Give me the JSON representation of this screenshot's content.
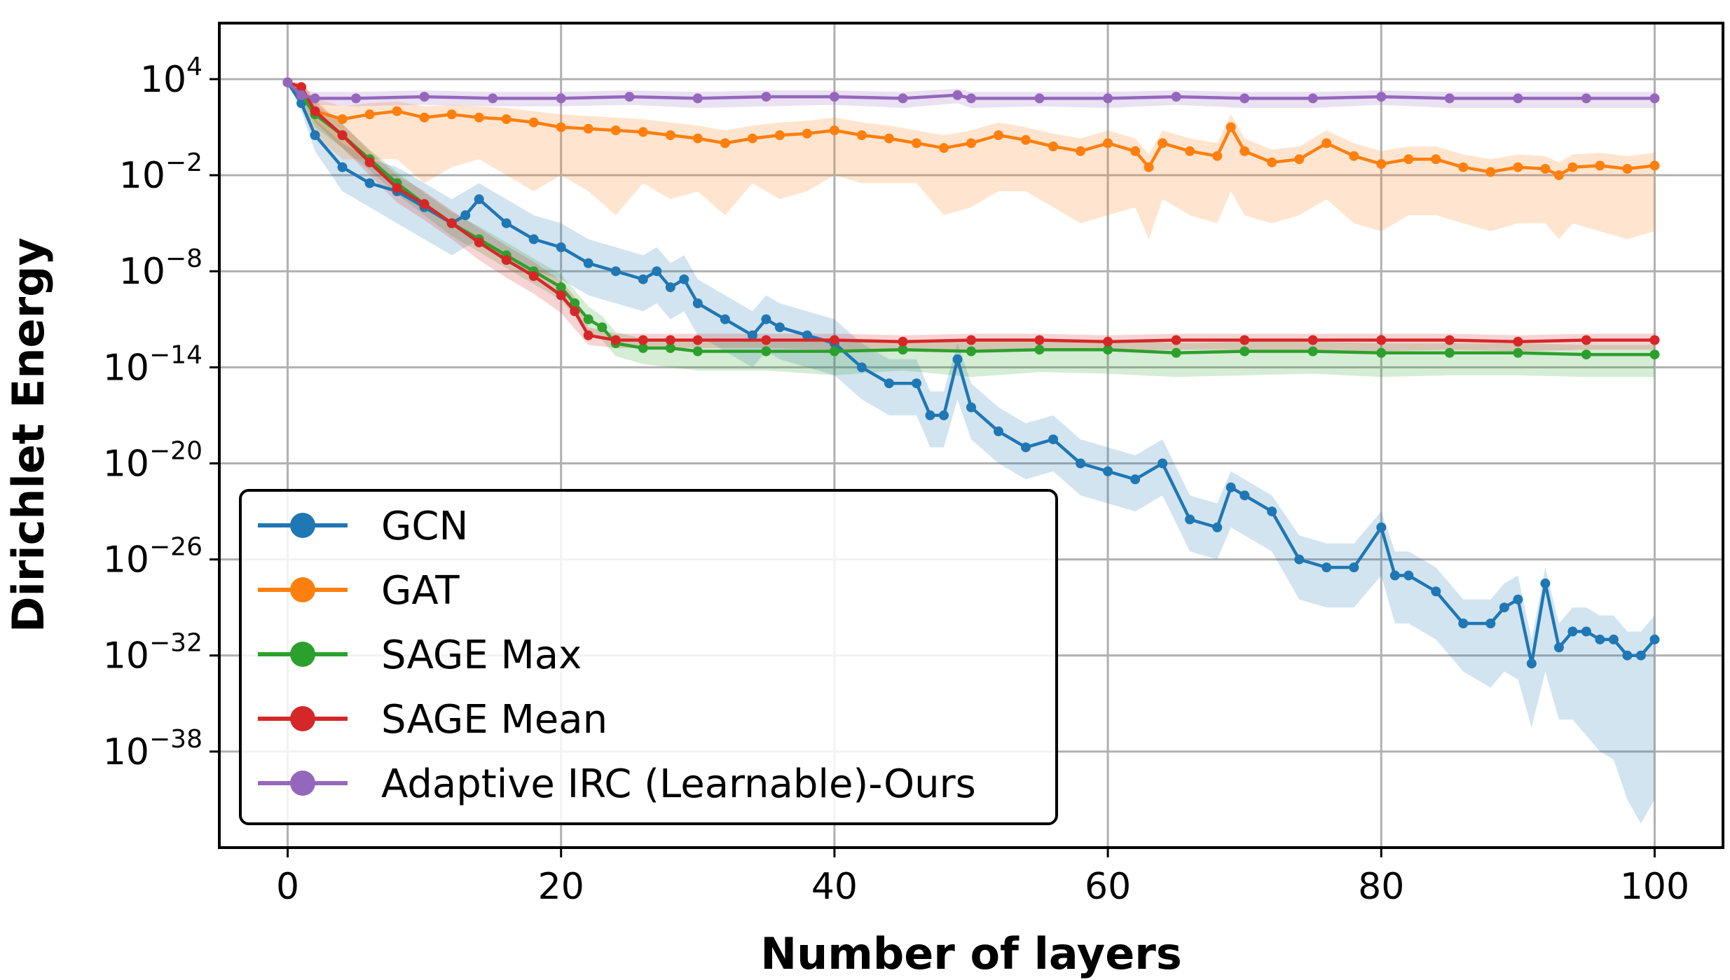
{
  "chart_data": {
    "type": "line",
    "title": "",
    "xlabel": "Number of layers",
    "ylabel": "Dirichlet Energy",
    "x_ticks": [
      "0",
      "20",
      "40",
      "60",
      "80",
      "100"
    ],
    "y_ticks": [
      {
        "base": "10",
        "exp": "4",
        "value": 4
      },
      {
        "base": "10",
        "exp": "−2",
        "value": -2
      },
      {
        "base": "10",
        "exp": "−8",
        "value": -8
      },
      {
        "base": "10",
        "exp": "−14",
        "value": -14
      },
      {
        "base": "10",
        "exp": "−20",
        "value": -20
      },
      {
        "base": "10",
        "exp": "−26",
        "value": -26
      },
      {
        "base": "10",
        "exp": "−32",
        "value": -32
      },
      {
        "base": "10",
        "exp": "−38",
        "value": -38
      }
    ],
    "xlim": [
      -5,
      105
    ],
    "ylim_log10": [
      -44,
      7.5
    ],
    "y_scale": "log",
    "grid": true,
    "legend_position": "lower-left",
    "series": [
      {
        "name": "GCN",
        "color": "#1f77b4",
        "x": [
          0,
          1,
          2,
          4,
          6,
          8,
          10,
          12,
          13,
          14,
          16,
          18,
          20,
          22,
          24,
          26,
          27,
          28,
          29,
          30,
          32,
          34,
          35,
          36,
          38,
          40,
          42,
          44,
          46,
          47,
          48,
          49,
          50,
          52,
          54,
          56,
          58,
          60,
          62,
          64,
          66,
          68,
          69,
          70,
          72,
          74,
          76,
          78,
          80,
          81,
          82,
          84,
          86,
          88,
          89,
          90,
          91,
          92,
          93,
          94,
          95,
          96,
          97,
          98,
          99,
          100
        ],
        "y_log10": [
          3.8,
          2.5,
          0.5,
          -1.5,
          -2.5,
          -3.0,
          -4.0,
          -5.0,
          -4.5,
          -3.5,
          -5.0,
          -6.0,
          -6.5,
          -7.5,
          -8.0,
          -8.5,
          -8.0,
          -9.0,
          -8.5,
          -10.0,
          -11.0,
          -12.0,
          -11.0,
          -11.5,
          -12.0,
          -12.5,
          -14.0,
          -15.0,
          -15.0,
          -17.0,
          -17.0,
          -13.5,
          -16.5,
          -18.0,
          -19.0,
          -18.5,
          -20.0,
          -20.5,
          -21.0,
          -20.0,
          -23.5,
          -24.0,
          -21.5,
          -22.0,
          -23.0,
          -26.0,
          -26.5,
          -26.5,
          -24.0,
          -27.0,
          -27.0,
          -28.0,
          -30.0,
          -30.0,
          -29.0,
          -28.5,
          -32.5,
          -27.5,
          -31.5,
          -30.5,
          -30.5,
          -31.0,
          -31.0,
          -32.0,
          -32.0,
          -31.0
        ],
        "band_upper_log10": [
          3.8,
          3.0,
          1.5,
          0.0,
          -1.0,
          -1.5,
          -2.5,
          -3.5,
          -3.0,
          -2.5,
          -3.5,
          -4.5,
          -5.0,
          -6.0,
          -6.5,
          -7.0,
          -6.5,
          -7.5,
          -7.0,
          -8.5,
          -9.5,
          -10.5,
          -9.5,
          -10.0,
          -10.5,
          -11.0,
          -12.5,
          -13.5,
          -13.5,
          -15.5,
          -15.5,
          -12.5,
          -15.0,
          -16.5,
          -17.5,
          -17.0,
          -18.5,
          -19.0,
          -19.5,
          -18.5,
          -22.0,
          -22.5,
          -20.5,
          -21.0,
          -22.0,
          -24.5,
          -25.0,
          -25.0,
          -23.0,
          -25.5,
          -25.5,
          -26.5,
          -28.5,
          -28.5,
          -27.5,
          -27.0,
          -31.0,
          -26.5,
          -30.0,
          -29.0,
          -29.0,
          -29.5,
          -29.5,
          -30.5,
          -30.5,
          -29.5
        ],
        "band_lower_log10": [
          3.8,
          2.0,
          -0.5,
          -3.0,
          -4.0,
          -5.0,
          -6.0,
          -7.0,
          -6.5,
          -6.0,
          -7.5,
          -8.0,
          -8.5,
          -9.5,
          -10.0,
          -10.5,
          -10.0,
          -11.0,
          -10.5,
          -12.0,
          -13.0,
          -14.0,
          -13.0,
          -13.5,
          -14.0,
          -14.5,
          -16.0,
          -17.0,
          -17.0,
          -19.0,
          -19.0,
          -16.0,
          -18.5,
          -20.0,
          -21.0,
          -20.5,
          -22.0,
          -22.5,
          -23.0,
          -22.0,
          -25.5,
          -26.0,
          -24.0,
          -24.5,
          -25.5,
          -28.5,
          -29.0,
          -29.0,
          -27.0,
          -30.0,
          -30.0,
          -31.0,
          -33.0,
          -34.0,
          -33.0,
          -33.5,
          -36.5,
          -33.0,
          -36.0,
          -36.0,
          -37.0,
          -38.0,
          -38.5,
          -41.0,
          -42.5,
          -41.0
        ]
      },
      {
        "name": "GAT",
        "color": "#ff7f0e",
        "x": [
          0,
          1,
          2,
          4,
          6,
          8,
          10,
          12,
          14,
          16,
          18,
          20,
          22,
          24,
          26,
          28,
          30,
          32,
          34,
          36,
          38,
          40,
          42,
          44,
          46,
          48,
          50,
          52,
          54,
          56,
          58,
          60,
          62,
          63,
          64,
          66,
          68,
          69,
          70,
          72,
          74,
          76,
          78,
          80,
          82,
          84,
          86,
          88,
          90,
          92,
          93,
          94,
          96,
          98,
          100
        ],
        "y_log10": [
          3.8,
          3.5,
          2.0,
          1.5,
          1.8,
          2.0,
          1.6,
          1.8,
          1.6,
          1.5,
          1.3,
          1.0,
          0.9,
          0.8,
          0.7,
          0.5,
          0.3,
          0.0,
          0.3,
          0.5,
          0.6,
          0.8,
          0.5,
          0.3,
          0.0,
          -0.3,
          0.0,
          0.5,
          0.2,
          -0.2,
          -0.5,
          0.0,
          -0.5,
          -1.5,
          0.0,
          -0.5,
          -0.8,
          1.0,
          -0.5,
          -1.2,
          -1.0,
          0.0,
          -0.8,
          -1.3,
          -1.0,
          -1.0,
          -1.5,
          -1.8,
          -1.5,
          -1.6,
          -2.0,
          -1.5,
          -1.4,
          -1.6,
          -1.4
        ],
        "band_upper_log10": [
          3.8,
          3.8,
          2.8,
          2.3,
          2.5,
          2.6,
          2.3,
          2.4,
          2.3,
          2.2,
          2.0,
          1.8,
          1.7,
          1.6,
          1.5,
          1.3,
          1.1,
          0.8,
          1.1,
          1.3,
          1.4,
          1.6,
          1.3,
          1.1,
          0.8,
          0.5,
          0.8,
          1.3,
          1.0,
          0.6,
          0.3,
          0.8,
          0.3,
          -0.7,
          0.8,
          0.3,
          0.0,
          1.8,
          0.3,
          -0.4,
          -0.2,
          0.8,
          0.0,
          -0.5,
          -0.2,
          -0.2,
          -0.7,
          -1.0,
          -0.7,
          -0.8,
          -1.2,
          -0.7,
          -0.6,
          -0.8,
          -0.6
        ],
        "band_lower_log10": [
          3.8,
          3.0,
          0.5,
          -1.0,
          -1.0,
          -1.0,
          -2.5,
          -1.5,
          -1.0,
          -2.0,
          -3.0,
          -2.0,
          -3.0,
          -4.5,
          -2.5,
          -3.5,
          -3.0,
          -4.5,
          -2.5,
          -3.5,
          -3.0,
          -2.0,
          -2.5,
          -2.5,
          -2.5,
          -4.5,
          -4.0,
          -3.0,
          -3.0,
          -4.0,
          -5.0,
          -4.5,
          -4.0,
          -6.0,
          -3.5,
          -4.5,
          -5.0,
          -3.0,
          -4.5,
          -5.0,
          -4.5,
          -3.5,
          -5.0,
          -5.5,
          -4.5,
          -4.5,
          -5.0,
          -5.5,
          -5.0,
          -5.0,
          -6.0,
          -5.0,
          -5.5,
          -6.0,
          -5.5
        ]
      },
      {
        "name": "SAGE Max",
        "color": "#2ca02c",
        "x": [
          0,
          1,
          2,
          4,
          6,
          8,
          10,
          12,
          14,
          16,
          18,
          20,
          21,
          22,
          23,
          24,
          26,
          28,
          30,
          35,
          40,
          45,
          50,
          55,
          60,
          65,
          70,
          75,
          80,
          85,
          90,
          95,
          100
        ],
        "y_log10": [
          3.8,
          3.0,
          1.8,
          0.5,
          -1.0,
          -2.5,
          -3.8,
          -5.0,
          -6.0,
          -7.0,
          -8.0,
          -9.0,
          -10.0,
          -11.0,
          -11.5,
          -12.5,
          -12.8,
          -12.8,
          -13.0,
          -13.0,
          -13.0,
          -12.9,
          -13.0,
          -12.9,
          -12.9,
          -13.1,
          -13.0,
          -13.0,
          -13.1,
          -13.1,
          -13.1,
          -13.2,
          -13.2
        ],
        "band_upper_log10": [
          3.8,
          3.5,
          2.5,
          1.2,
          -0.4,
          -1.8,
          -3.1,
          -4.3,
          -5.2,
          -6.2,
          -7.2,
          -8.2,
          -9.2,
          -10.2,
          -10.8,
          -11.8,
          -12.2,
          -12.2,
          -12.4,
          -12.4,
          -12.4,
          -12.3,
          -12.4,
          -12.3,
          -12.3,
          -12.5,
          -12.4,
          -12.4,
          -12.5,
          -12.5,
          -12.5,
          -12.6,
          -12.6
        ],
        "band_lower_log10": [
          3.8,
          2.5,
          1.0,
          -0.3,
          -1.7,
          -3.2,
          -4.5,
          -5.8,
          -6.8,
          -7.8,
          -8.8,
          -9.8,
          -10.8,
          -11.8,
          -12.3,
          -13.3,
          -13.8,
          -14.0,
          -14.2,
          -14.2,
          -14.5,
          -14.2,
          -14.6,
          -14.3,
          -14.4,
          -14.6,
          -14.5,
          -14.4,
          -14.6,
          -14.5,
          -14.5,
          -14.6,
          -14.6
        ]
      },
      {
        "name": "SAGE Mean",
        "color": "#d62728",
        "x": [
          0,
          1,
          2,
          4,
          6,
          8,
          10,
          12,
          14,
          16,
          18,
          20,
          21,
          22,
          24,
          26,
          28,
          30,
          35,
          40,
          45,
          50,
          55,
          60,
          65,
          70,
          75,
          80,
          85,
          90,
          95,
          100
        ],
        "y_log10": [
          3.8,
          3.5,
          2.0,
          0.5,
          -1.2,
          -2.8,
          -3.8,
          -5.0,
          -6.2,
          -7.3,
          -8.3,
          -9.5,
          -10.5,
          -12.0,
          -12.3,
          -12.3,
          -12.3,
          -12.3,
          -12.3,
          -12.3,
          -12.4,
          -12.3,
          -12.3,
          -12.4,
          -12.3,
          -12.3,
          -12.3,
          -12.3,
          -12.3,
          -12.4,
          -12.3,
          -12.3
        ],
        "band_upper_log10": [
          3.8,
          3.8,
          2.7,
          1.2,
          -0.5,
          -2.0,
          -3.0,
          -4.2,
          -5.3,
          -6.4,
          -7.4,
          -8.6,
          -9.6,
          -11.5,
          -11.9,
          -11.9,
          -11.9,
          -11.9,
          -11.9,
          -11.9,
          -12.0,
          -11.9,
          -11.9,
          -12.0,
          -11.9,
          -11.9,
          -11.9,
          -11.9,
          -11.9,
          -12.0,
          -11.9,
          -11.9
        ],
        "band_lower_log10": [
          3.8,
          3.0,
          1.3,
          -0.3,
          -2.0,
          -3.7,
          -4.8,
          -6.0,
          -7.3,
          -8.4,
          -9.4,
          -10.6,
          -11.6,
          -12.6,
          -12.8,
          -12.8,
          -12.8,
          -12.8,
          -12.8,
          -12.9,
          -13.0,
          -12.9,
          -12.9,
          -13.0,
          -12.9,
          -12.9,
          -12.9,
          -13.0,
          -12.9,
          -13.0,
          -12.9,
          -12.9
        ]
      },
      {
        "name": "Adaptive IRC (Learnable)-Ours",
        "color": "#9467bd",
        "x": [
          0,
          1,
          2,
          5,
          10,
          15,
          20,
          25,
          30,
          35,
          40,
          45,
          49,
          50,
          55,
          60,
          65,
          70,
          75,
          80,
          85,
          90,
          95,
          100
        ],
        "y_log10": [
          3.8,
          3.0,
          2.8,
          2.8,
          2.9,
          2.8,
          2.8,
          2.9,
          2.8,
          2.9,
          2.9,
          2.8,
          3.0,
          2.8,
          2.8,
          2.8,
          2.9,
          2.8,
          2.8,
          2.9,
          2.8,
          2.8,
          2.8,
          2.8
        ],
        "band_upper_log10": [
          3.8,
          3.4,
          3.2,
          3.2,
          3.3,
          3.2,
          3.2,
          3.3,
          3.2,
          3.3,
          3.3,
          3.2,
          3.4,
          3.2,
          3.2,
          3.2,
          3.3,
          3.2,
          3.2,
          3.3,
          3.2,
          3.2,
          3.2,
          3.2
        ],
        "band_lower_log10": [
          3.8,
          2.6,
          2.4,
          2.3,
          2.4,
          2.3,
          2.3,
          2.4,
          2.2,
          2.3,
          2.4,
          2.2,
          2.5,
          2.2,
          2.3,
          2.2,
          2.4,
          2.2,
          2.2,
          2.4,
          2.2,
          2.2,
          2.2,
          2.2
        ]
      }
    ]
  }
}
